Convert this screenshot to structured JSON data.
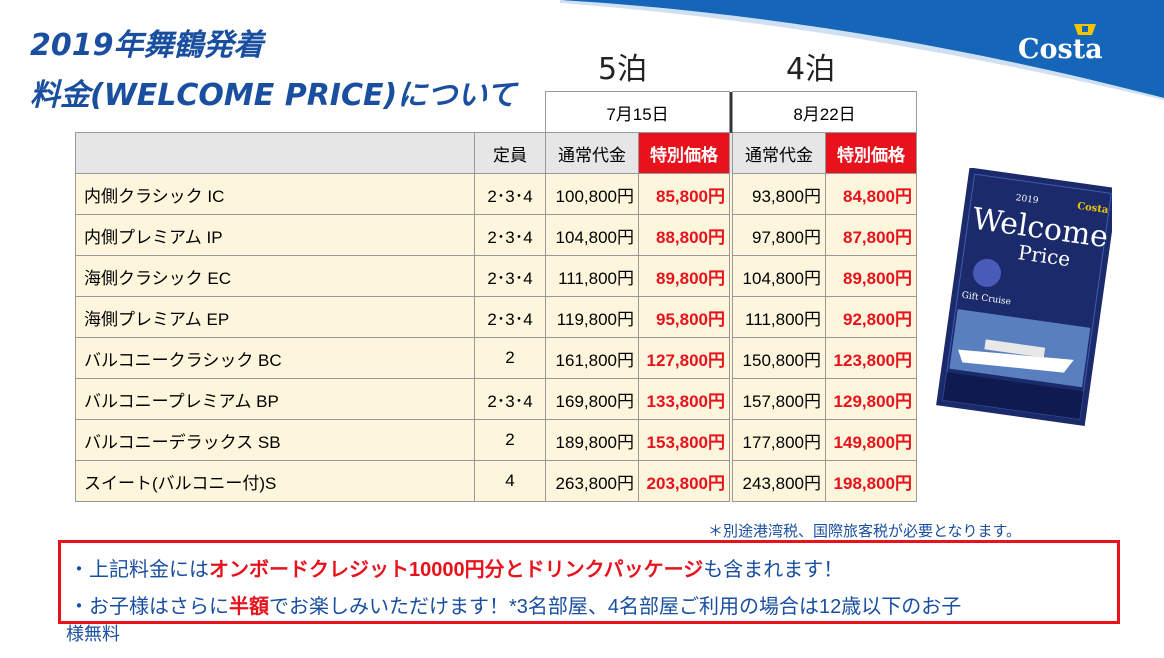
{
  "title": {
    "line1": "2019年舞鶴発着",
    "line2": "料金(WELCOME PRICE)について"
  },
  "logo": {
    "text": "Costa"
  },
  "columns": {
    "nights_5": "5泊",
    "nights_4": "4泊",
    "date_5": "7月15日",
    "date_4": "8月22日",
    "capacity": "定員",
    "regular": "通常代金",
    "special": "特別価格"
  },
  "rows": [
    {
      "name": "内側クラシック IC",
      "capacity": "2･3･4",
      "r5": "100,800円",
      "s5": "85,800円",
      "r4": "93,800円",
      "s4": "84,800円"
    },
    {
      "name": "内側プレミアム IP",
      "capacity": "2･3･4",
      "r5": "104,800円",
      "s5": "88,800円",
      "r4": "97,800円",
      "s4": "87,800円"
    },
    {
      "name": "海側クラシック EC",
      "capacity": "2･3･4",
      "r5": "111,800円",
      "s5": "89,800円",
      "r4": "104,800円",
      "s4": "89,800円"
    },
    {
      "name": "海側プレミアム EP",
      "capacity": "2･3･4",
      "r5": "119,800円",
      "s5": "95,800円",
      "r4": "111,800円",
      "s4": "92,800円"
    },
    {
      "name": "バルコニークラシック BC",
      "capacity": "2",
      "r5": "161,800円",
      "s5": "127,800円",
      "r4": "150,800円",
      "s4": "123,800円"
    },
    {
      "name": "バルコニープレミアム BP",
      "capacity": "2･3･4",
      "r5": "169,800円",
      "s5": "133,800円",
      "r4": "157,800円",
      "s4": "129,800円"
    },
    {
      "name": "バルコニーデラックス SB",
      "capacity": "2",
      "r5": "189,800円",
      "s5": "153,800円",
      "r4": "177,800円",
      "s4": "149,800円"
    },
    {
      "name": "スイート(バルコニー付)S",
      "capacity": "4",
      "r5": "263,800円",
      "s5": "203,800円",
      "r4": "243,800円",
      "s4": "198,800円"
    }
  ],
  "note": "＊別途港湾税、国際旅客税が必要となります。",
  "notice": {
    "l1_a": "・上記料金には",
    "l1_b": "オンボードクレジット10000円分とドリンクパッケージ",
    "l1_c": "も含まれます！",
    "l2_a": "・お子様はさらに",
    "l2_b": "半額",
    "l2_c": "でお楽しみいただけます！*3名部屋、4名部屋ご利用の場合は12歳以下のお子",
    "l3": "様無料"
  },
  "brochure": {
    "year": "2019",
    "word1": "Welcome",
    "word2": "Price",
    "ship": "Gift Cruise",
    "brand": "Costa"
  },
  "colors": {
    "accent_red": "#e8121d",
    "brand_blue": "#1a4fa0",
    "row_bg": "#fdf6dc"
  }
}
